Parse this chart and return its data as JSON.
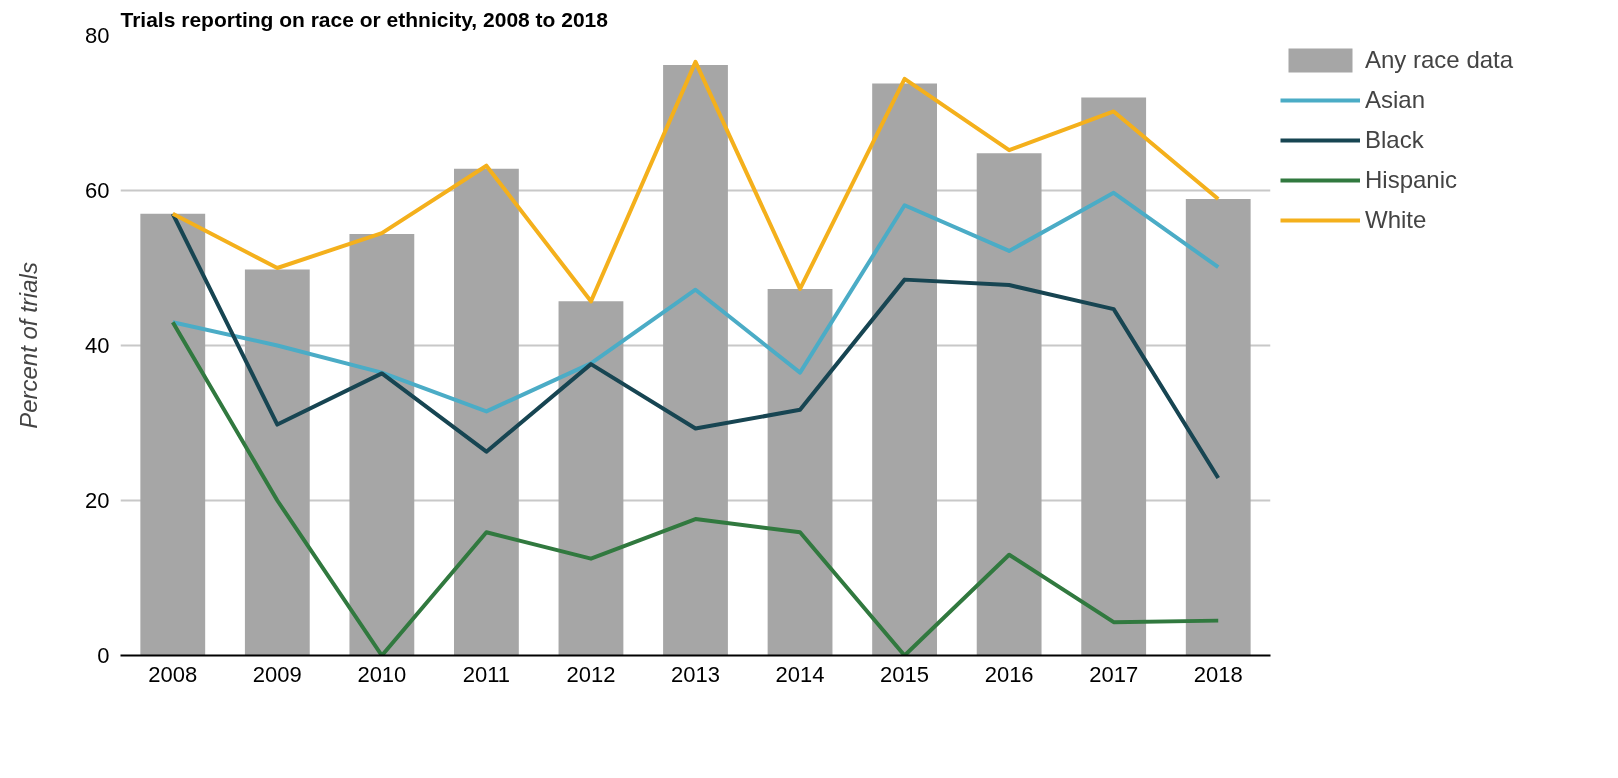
{
  "chart_data": {
    "type": "bar",
    "title": "Trials reporting on race or ethnicity, 2008 to 2018",
    "ylabel": "Percent of trials",
    "categories": [
      "2008",
      "2009",
      "2010",
      "2011",
      "2012",
      "2013",
      "2014",
      "2015",
      "2016",
      "2017",
      "2018"
    ],
    "series": [
      {
        "name": "Any race data",
        "color": "#a6a6a6",
        "values": [
          57,
          49.8,
          54.4,
          62.8,
          45.7,
          76.2,
          47.3,
          73.8,
          64.8,
          72,
          58.9
        ]
      },
      {
        "name": "Asian",
        "type": "line",
        "color": "#4bacc6",
        "values": [
          43,
          40,
          36.5,
          31.5,
          37.7,
          47.2,
          36.5,
          58.1,
          52.2,
          59.7,
          50.1
        ]
      },
      {
        "name": "Black",
        "type": "line",
        "color": "#174552",
        "values": [
          57,
          29.8,
          36.4,
          26.3,
          37.6,
          29.3,
          31.7,
          48.5,
          47.8,
          44.7,
          22.9
        ]
      },
      {
        "name": "Hispanic",
        "type": "line",
        "color": "#31793f",
        "values": [
          43,
          20,
          0,
          15.9,
          12.5,
          17.6,
          15.9,
          0,
          13,
          4.3,
          4.5
        ]
      },
      {
        "name": "White",
        "type": "line",
        "color": "#f4b01c",
        "values": [
          57,
          50,
          54.5,
          63.2,
          45.7,
          76.6,
          47.3,
          74.4,
          65.2,
          70.2,
          58.9
        ]
      }
    ],
    "ylim": [
      0,
      80
    ],
    "yticks": [
      0,
      20,
      40,
      60,
      80
    ],
    "grid": "y",
    "legend": "right",
    "marker": "none",
    "line_style": "solid"
  }
}
